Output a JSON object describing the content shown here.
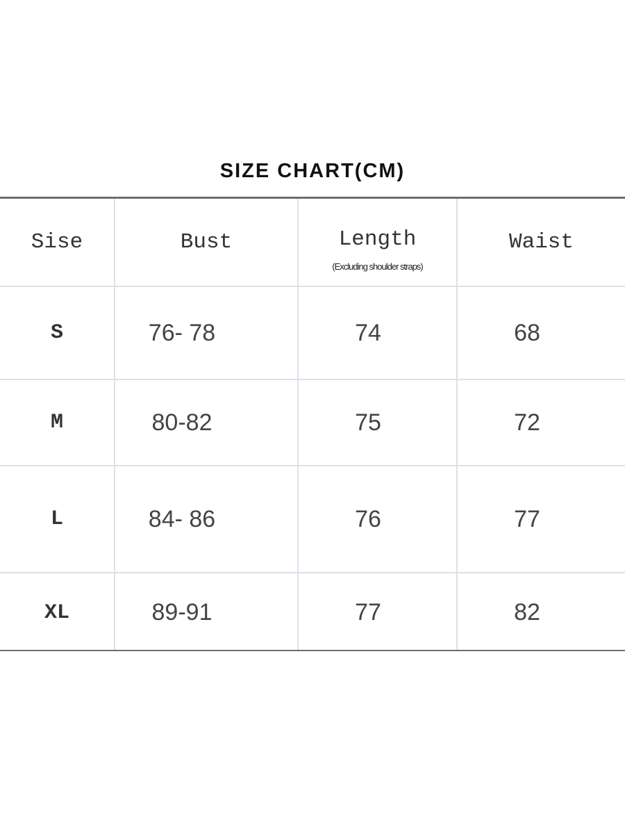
{
  "title": "SIZE CHART(CM)",
  "table": {
    "headers": [
      "Sise",
      "Bust",
      "Length",
      "Waist"
    ],
    "length_note": "(Excluding shoulder straps)",
    "rows": [
      [
        "S",
        "76- 78",
        "74",
        "68"
      ],
      [
        "M",
        "80-82",
        "75",
        "72"
      ],
      [
        "L",
        "84- 86",
        "76",
        "77"
      ],
      [
        "XL",
        "89-91",
        "77",
        "82"
      ]
    ]
  }
}
